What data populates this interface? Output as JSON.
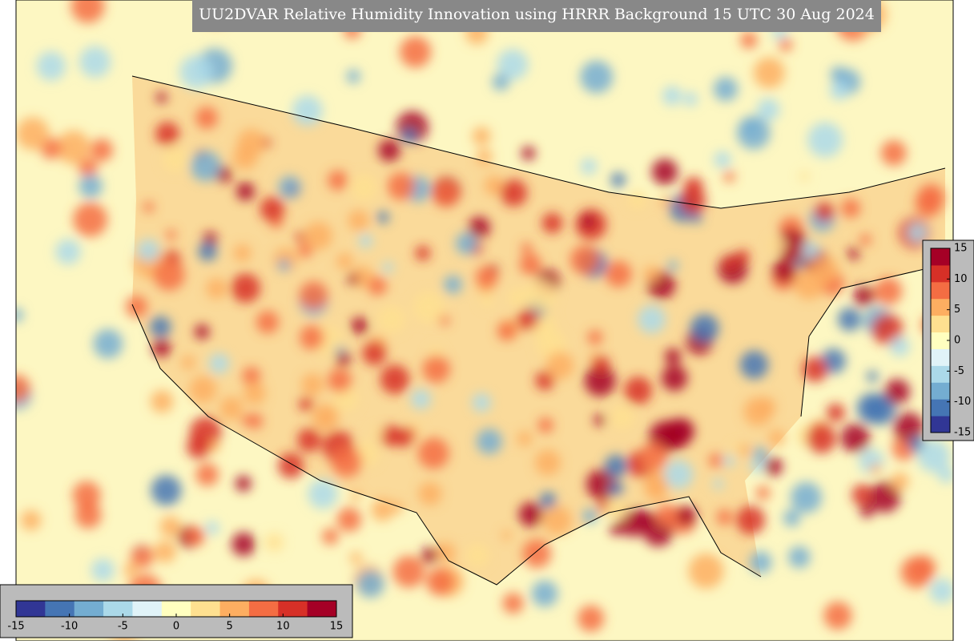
{
  "title": "UU2DVAR Relative Humidity Innovation using HRRR Background 15 UTC 30 Aug 2024",
  "colorbars": [
    {
      "orientation": "vertical",
      "lim": [
        -15,
        15
      ],
      "ticks": [
        15,
        10,
        5,
        0,
        -5,
        -10,
        -15
      ]
    },
    {
      "orientation": "horizontal",
      "lim": [
        -15,
        15
      ],
      "ticks": [
        -15,
        -10,
        -5,
        0,
        5,
        10,
        15
      ]
    }
  ],
  "colors": [
    "#313695",
    "#4575b4",
    "#74add1",
    "#abd9e9",
    "#e0f3f8",
    "#ffffbf",
    "#fee090",
    "#fdae61",
    "#f46d43",
    "#d73027",
    "#a50026"
  ]
}
